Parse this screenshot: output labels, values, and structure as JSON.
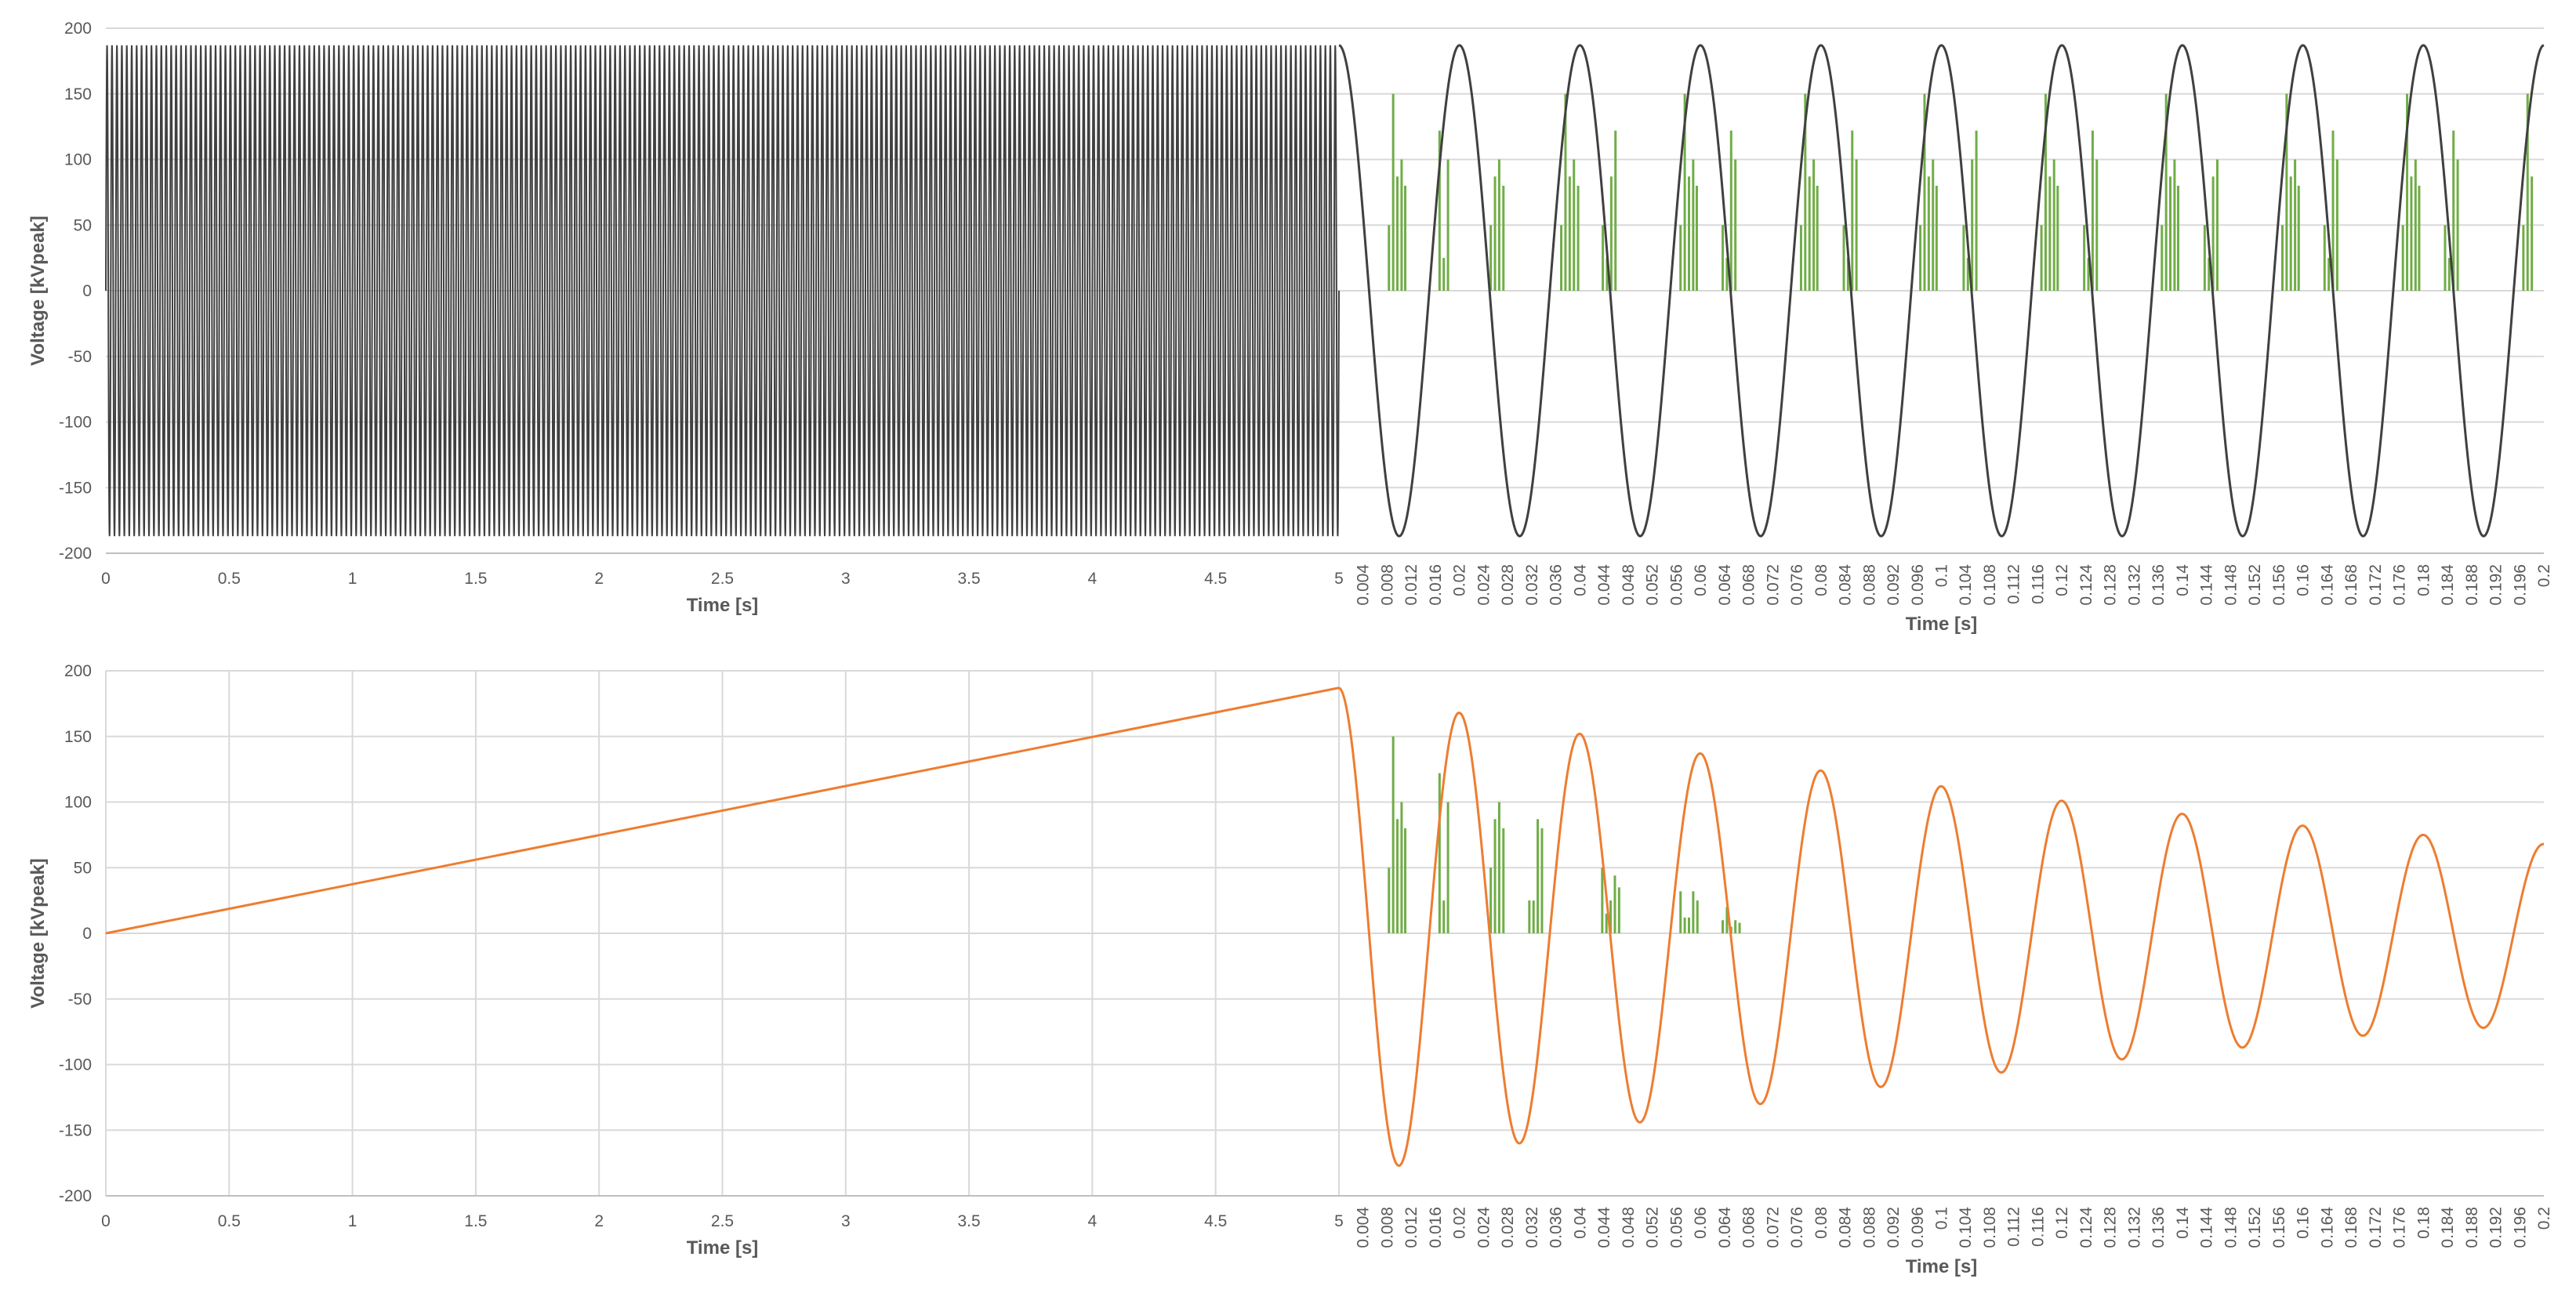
{
  "chart_data": [
    {
      "type": "line",
      "panel": "top",
      "ylabel": "Voltage [kVpeak]",
      "ylim": [
        -200,
        200
      ],
      "yticks": [
        "200",
        "150",
        "100",
        "50",
        "0",
        "-50",
        "-100",
        "-150",
        "-200"
      ],
      "grid": "horizontal",
      "colors": {
        "line": "#404040",
        "bars": "#70ad47",
        "grid": "#d9d9d9",
        "axis": "#bfbfbf"
      },
      "left_segment": {
        "xlabel": "Time [s]",
        "xlim": [
          0,
          5
        ],
        "xticks": [
          "0",
          "0.5",
          "1",
          "1.5",
          "2",
          "2.5",
          "3",
          "3.5",
          "4",
          "4.5",
          "5"
        ],
        "series": [
          {
            "kind": "sinusoid",
            "amplitude": 187,
            "frequency_hz": 50,
            "offset": 0
          }
        ]
      },
      "right_segment": {
        "xlabel": "Time [s]",
        "xlim": [
          0,
          0.2
        ],
        "xticks": [
          "0.004",
          "0.008",
          "0.012",
          "0.016",
          "0.02",
          "0.024",
          "0.028",
          "0.032",
          "0.036",
          "0.04",
          "0.044",
          "0.048",
          "0.052",
          "0.056",
          "0.06",
          "0.064",
          "0.068",
          "0.072",
          "0.076",
          "0.08",
          "0.084",
          "0.088",
          "0.092",
          "0.096",
          "0.1",
          "0.104",
          "0.108",
          "0.112",
          "0.116",
          "0.12",
          "0.124",
          "0.128",
          "0.132",
          "0.136",
          "0.14",
          "0.144",
          "0.148",
          "0.152",
          "0.156",
          "0.16",
          "0.164",
          "0.168",
          "0.172",
          "0.176",
          "0.18",
          "0.184",
          "0.188",
          "0.192",
          "0.196",
          "0.2"
        ],
        "series": [
          {
            "kind": "sinusoid",
            "amplitude": 187,
            "frequency_hz": 50,
            "phase": "cosine"
          }
        ],
        "bars": {
          "x": [
            0.0083,
            0.009,
            0.0097,
            0.0104,
            0.011,
            0.0167,
            0.0174,
            0.0181,
            0.0188,
            0.0194,
            0.0252,
            0.0259,
            0.0266,
            0.0273,
            0.0279,
            0.0369,
            0.0376,
            0.0383,
            0.039,
            0.0397,
            0.0438,
            0.0445,
            0.0452,
            0.0459,
            0.0466,
            0.0567,
            0.0574,
            0.0581,
            0.0588,
            0.0594,
            0.0637,
            0.0644,
            0.0651,
            0.0658,
            0.0664,
            0.0767,
            0.0774,
            0.0781,
            0.0788,
            0.0794,
            0.0838,
            0.0845,
            0.0852,
            0.0859,
            0.0865,
            0.0965,
            0.0972,
            0.0979,
            0.0986,
            0.0992,
            0.1037,
            0.1044,
            0.1051,
            0.1058,
            0.1064,
            0.1166,
            0.1173,
            0.118,
            0.1187,
            0.1193,
            0.1237,
            0.1244,
            0.1251,
            0.1258,
            0.1264,
            0.1366,
            0.1373,
            0.138,
            0.1387,
            0.1393,
            0.1437,
            0.1444,
            0.1451,
            0.1458,
            0.1464,
            0.1566,
            0.1573,
            0.158,
            0.1587,
            0.1593,
            0.1636,
            0.1643,
            0.165,
            0.1657,
            0.1663,
            0.1766,
            0.1773,
            0.178,
            0.1787,
            0.1793,
            0.1836,
            0.1843,
            0.185,
            0.1857,
            0.1863,
            0.1966,
            0.1973,
            0.198
          ],
          "values": [
            50,
            150,
            87,
            100,
            80,
            122,
            25,
            100,
            0,
            0,
            50,
            87,
            100,
            80,
            0,
            50,
            150,
            87,
            100,
            80,
            50,
            25,
            87,
            122,
            0,
            50,
            150,
            87,
            100,
            80,
            50,
            25,
            122,
            100,
            0,
            50,
            150,
            87,
            100,
            80,
            50,
            25,
            122,
            100,
            0,
            50,
            150,
            87,
            100,
            80,
            50,
            25,
            100,
            122,
            0,
            50,
            150,
            87,
            100,
            80,
            50,
            25,
            122,
            100,
            0,
            50,
            150,
            87,
            100,
            80,
            50,
            25,
            87,
            100,
            0,
            50,
            150,
            87,
            100,
            80,
            50,
            25,
            122,
            100,
            0,
            50,
            150,
            87,
            100,
            80,
            50,
            25,
            122,
            100,
            0,
            50,
            150,
            87
          ]
        }
      }
    },
    {
      "type": "line",
      "panel": "bottom",
      "ylabel": "Voltage [kVpeak]",
      "ylim": [
        -200,
        200
      ],
      "yticks": [
        "200",
        "150",
        "100",
        "50",
        "0",
        "-50",
        "-100",
        "-150",
        "-200"
      ],
      "grid": "both",
      "colors": {
        "line": "#ed7d31",
        "bars": "#70ad47",
        "grid": "#d9d9d9",
        "axis": "#bfbfbf"
      },
      "left_segment": {
        "xlabel": "Time [s]",
        "xlim": [
          0,
          5
        ],
        "xticks": [
          "0",
          "0.5",
          "1",
          "1.5",
          "2",
          "2.5",
          "3",
          "3.5",
          "4",
          "4.5",
          "5"
        ],
        "series": [
          {
            "kind": "ramp",
            "x": [
              0,
              5
            ],
            "y": [
              0,
              187
            ]
          }
        ]
      },
      "right_segment": {
        "xlabel": "Time [s]",
        "xlim": [
          0,
          0.2
        ],
        "xticks": [
          "0.004",
          "0.008",
          "0.012",
          "0.016",
          "0.02",
          "0.024",
          "0.028",
          "0.032",
          "0.036",
          "0.04",
          "0.044",
          "0.048",
          "0.052",
          "0.056",
          "0.06",
          "0.064",
          "0.068",
          "0.072",
          "0.076",
          "0.08",
          "0.084",
          "0.088",
          "0.092",
          "0.096",
          "0.1",
          "0.104",
          "0.108",
          "0.112",
          "0.116",
          "0.12",
          "0.124",
          "0.128",
          "0.132",
          "0.136",
          "0.14",
          "0.144",
          "0.148",
          "0.152",
          "0.156",
          "0.16",
          "0.164",
          "0.168",
          "0.172",
          "0.176",
          "0.18",
          "0.184",
          "0.188",
          "0.192",
          "0.196",
          "0.2"
        ],
        "series": [
          {
            "kind": "damped-oscillation",
            "frequency_hz": 50,
            "start": 187,
            "peaks": [
              [
                0.02,
                168
              ],
              [
                0.04,
                152
              ],
              [
                0.06,
                137
              ],
              [
                0.08,
                124
              ],
              [
                0.1,
                112
              ],
              [
                0.12,
                101
              ],
              [
                0.14,
                91
              ],
              [
                0.16,
                82
              ],
              [
                0.18,
                75
              ],
              [
                0.2,
                68
              ]
            ],
            "troughs": [
              [
                0.01,
                -177
              ],
              [
                0.03,
                -160
              ],
              [
                0.05,
                -144
              ],
              [
                0.07,
                -130
              ],
              [
                0.09,
                -117
              ],
              [
                0.11,
                -106
              ],
              [
                0.13,
                -96
              ],
              [
                0.15,
                -87
              ],
              [
                0.17,
                -78
              ],
              [
                0.19,
                -72
              ]
            ]
          }
        ],
        "bars": {
          "x": [
            0.0083,
            0.009,
            0.0097,
            0.0104,
            0.011,
            0.0167,
            0.0174,
            0.0181,
            0.0188,
            0.0194,
            0.0252,
            0.0259,
            0.0266,
            0.0273,
            0.0279,
            0.0316,
            0.0323,
            0.033,
            0.0337,
            0.0343,
            0.0437,
            0.0444,
            0.0451,
            0.0458,
            0.0465,
            0.0567,
            0.0574,
            0.0581,
            0.0588,
            0.0595,
            0.0637,
            0.0644,
            0.0651,
            0.0658,
            0.0665
          ],
          "values": [
            50,
            150,
            87,
            100,
            80,
            122,
            25,
            100,
            0,
            0,
            50,
            87,
            100,
            80,
            0,
            25,
            25,
            87,
            80,
            0,
            50,
            15,
            25,
            44,
            35,
            32,
            12,
            12,
            32,
            25,
            10,
            20,
            5,
            10,
            8
          ]
        }
      }
    }
  ]
}
